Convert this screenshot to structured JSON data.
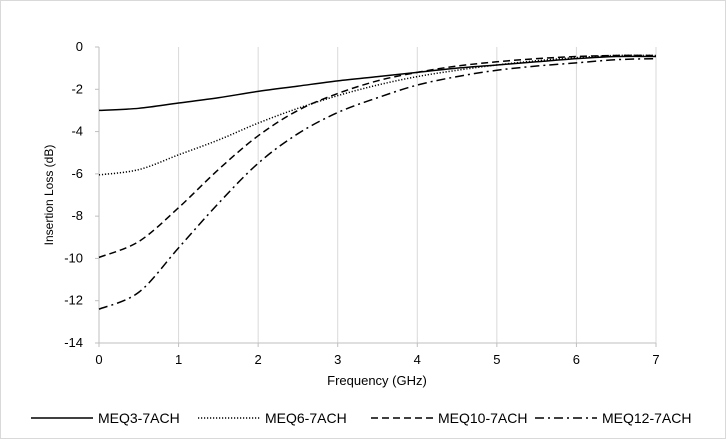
{
  "chart_data": {
    "type": "line",
    "title": "",
    "xlabel": "Frequency (GHz)",
    "ylabel": "Insertion Loss (dB)",
    "xlim": [
      0,
      7
    ],
    "ylim": [
      -14,
      0
    ],
    "x_ticks": [
      0,
      1,
      2,
      3,
      4,
      5,
      6,
      7
    ],
    "y_ticks": [
      0,
      -2,
      -4,
      -6,
      -8,
      -10,
      -12,
      -14
    ],
    "grid": "vertical",
    "legend_position": "bottom",
    "series": [
      {
        "name": "MEQ3-7ACH",
        "style": "solid",
        "x": [
          0,
          0.5,
          1,
          1.5,
          2,
          2.5,
          3,
          3.5,
          4,
          4.5,
          5,
          5.5,
          6,
          6.5,
          7
        ],
        "y": [
          -3.0,
          -2.9,
          -2.65,
          -2.4,
          -2.1,
          -1.85,
          -1.6,
          -1.4,
          -1.2,
          -1.0,
          -0.85,
          -0.7,
          -0.55,
          -0.45,
          -0.45
        ]
      },
      {
        "name": "MEQ6-7ACH",
        "style": "dotted",
        "x": [
          0,
          0.5,
          1,
          1.5,
          2,
          2.5,
          3,
          3.5,
          4,
          4.5,
          5,
          5.5,
          6,
          6.5,
          7
        ],
        "y": [
          -6.05,
          -5.8,
          -5.1,
          -4.4,
          -3.6,
          -2.9,
          -2.3,
          -1.8,
          -1.4,
          -1.1,
          -0.85,
          -0.65,
          -0.5,
          -0.4,
          -0.4
        ]
      },
      {
        "name": "MEQ10-7ACH",
        "style": "dashed",
        "x": [
          0,
          0.5,
          1,
          1.5,
          2,
          2.5,
          3,
          3.5,
          4,
          4.5,
          5,
          5.5,
          6,
          6.5,
          7
        ],
        "y": [
          -9.95,
          -9.2,
          -7.6,
          -5.8,
          -4.2,
          -3.0,
          -2.2,
          -1.6,
          -1.2,
          -0.9,
          -0.7,
          -0.55,
          -0.45,
          -0.4,
          -0.4
        ]
      },
      {
        "name": "MEQ12-7ACH",
        "style": "dashdot",
        "x": [
          0,
          0.5,
          1,
          1.5,
          2,
          2.5,
          3,
          3.5,
          4,
          4.5,
          5,
          5.5,
          6,
          6.5,
          7
        ],
        "y": [
          -12.4,
          -11.6,
          -9.5,
          -7.4,
          -5.5,
          -4.1,
          -3.1,
          -2.4,
          -1.8,
          -1.4,
          -1.1,
          -0.9,
          -0.75,
          -0.6,
          -0.55
        ]
      }
    ]
  }
}
